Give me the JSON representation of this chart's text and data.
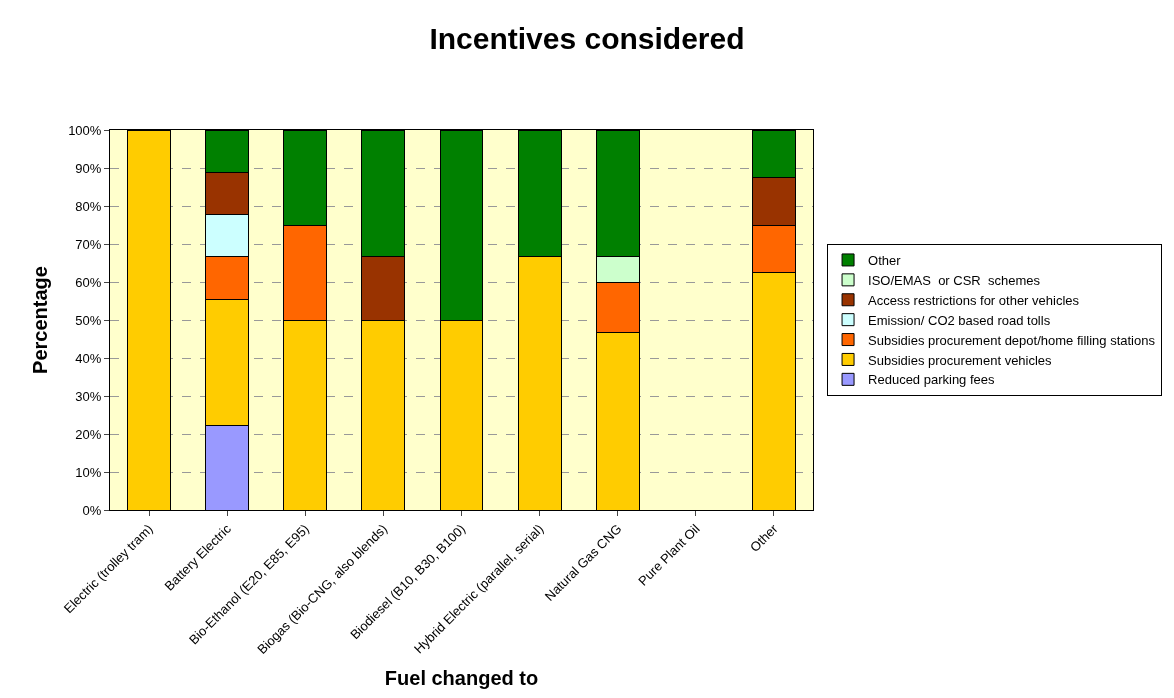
{
  "chart_data": {
    "type": "bar",
    "stacked": true,
    "title": "Incentives considered",
    "xlabel": "Fuel changed to",
    "ylabel": "Percentage",
    "categories": [
      "Electric (trolley tram)",
      "Battery Electric",
      "Bio-Ethanol (E20, E85, E95)",
      "Biogas (Bio-CNG, also blends)",
      "Biodiesel (B10, B30, B100)",
      "Hybrid Electric (parallel, serial)",
      "Natural Gas CNG",
      "Pure Plant Oil",
      "Other"
    ],
    "series": [
      {
        "name": "Reduced parking fees",
        "color": "#9999ff",
        "values": [
          null,
          22.2,
          null,
          null,
          null,
          null,
          null,
          null,
          null
        ]
      },
      {
        "name": "Subsidies procurement vehicles",
        "color": "#ffcc00",
        "values": [
          100,
          33.3,
          50,
          50,
          50,
          66.7,
          46.7,
          null,
          62.5
        ]
      },
      {
        "name": "Subsidies procurement depot/home filling stations",
        "color": "#ff6600",
        "values": [
          null,
          11.1,
          25,
          null,
          null,
          null,
          13.3,
          null,
          12.5
        ]
      },
      {
        "name": "Emission/ CO2 based road tolls",
        "color": "#ccffff",
        "values": [
          null,
          11.1,
          null,
          null,
          null,
          null,
          null,
          null,
          null
        ]
      },
      {
        "name": "Access restrictions for other vehicles",
        "color": "#993300",
        "values": [
          null,
          11.1,
          null,
          16.7,
          null,
          null,
          null,
          null,
          12.5
        ]
      },
      {
        "name": "ISO/EMAS  or CSR  schemes",
        "color": "#ccffcc",
        "values": [
          null,
          null,
          null,
          null,
          null,
          null,
          6.7,
          null,
          null
        ]
      },
      {
        "name": "Other",
        "color": "#008000",
        "values": [
          null,
          11.1,
          25,
          33.3,
          50,
          33.3,
          33.3,
          null,
          12.5
        ]
      }
    ],
    "ylim": [
      0,
      100
    ],
    "yticks": [
      {
        "value": 0,
        "label": "0%"
      },
      {
        "value": 10,
        "label": "10%"
      },
      {
        "value": 20,
        "label": "20%"
      },
      {
        "value": 30,
        "label": "30%"
      },
      {
        "value": 40,
        "label": "40%"
      },
      {
        "value": 50,
        "label": "50%"
      },
      {
        "value": 60,
        "label": "60%"
      },
      {
        "value": 70,
        "label": "70%"
      },
      {
        "value": 80,
        "label": "80%"
      },
      {
        "value": 90,
        "label": "90%"
      },
      {
        "value": 100,
        "label": "100%"
      }
    ],
    "grid": "y",
    "legend": "right"
  }
}
